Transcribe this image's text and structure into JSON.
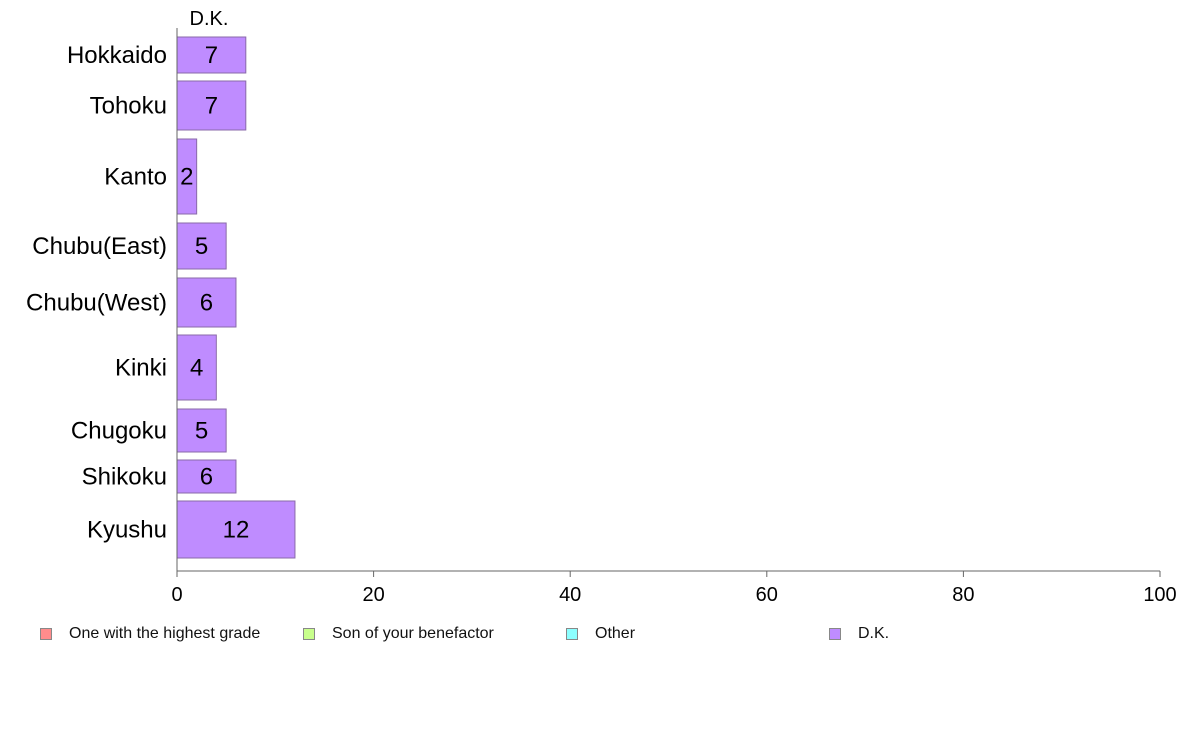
{
  "chart_data": {
    "type": "bar",
    "orientation": "horizontal",
    "stacked": true,
    "column_label": "D.K.",
    "categories": [
      "Hokkaido",
      "Tohoku",
      "Kanto",
      "Chubu(East)",
      "Chubu(West)",
      "Kinki",
      "Chugoku",
      "Shikoku",
      "Kyushu"
    ],
    "series": [
      {
        "name": "One with the highest grade",
        "color": "#ff8c8c",
        "values": [
          null,
          null,
          null,
          null,
          null,
          null,
          null,
          null,
          null
        ]
      },
      {
        "name": "Son of your benefactor",
        "color": "#c8ff8c",
        "values": [
          null,
          null,
          null,
          null,
          null,
          null,
          null,
          null,
          null
        ]
      },
      {
        "name": "Other",
        "color": "#8cffff",
        "values": [
          null,
          null,
          null,
          null,
          null,
          null,
          null,
          null,
          null
        ]
      },
      {
        "name": "D.K.",
        "color": "#bf8cff",
        "values": [
          7,
          7,
          2,
          5,
          6,
          4,
          5,
          6,
          12
        ]
      }
    ],
    "data_labels": [
      "7",
      "7",
      "2",
      "5",
      "6",
      "4",
      "5",
      "6",
      "12"
    ],
    "xlim": [
      0,
      100
    ],
    "xticks": [
      0,
      20,
      40,
      60,
      80,
      100
    ],
    "xlabel": "",
    "ylabel": "",
    "grid": false,
    "legend_position": "bottom"
  }
}
